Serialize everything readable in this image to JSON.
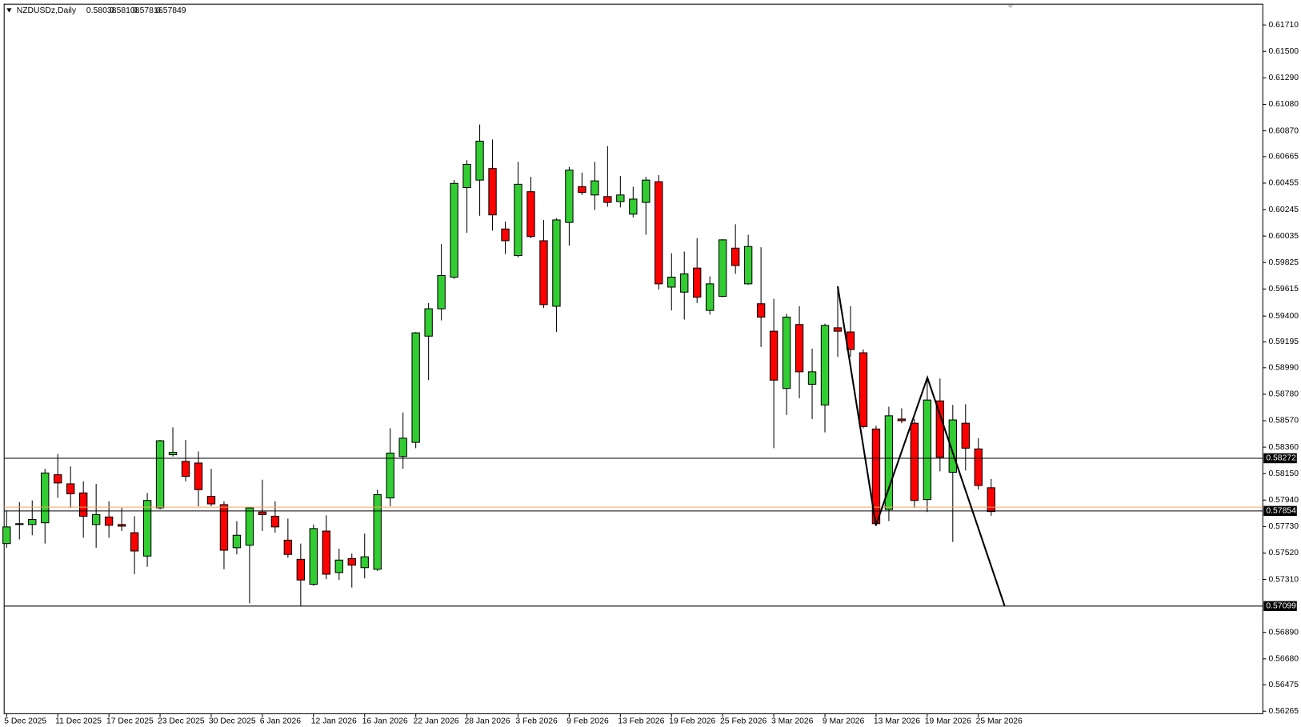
{
  "chart_data": {
    "type": "candlestick",
    "title": "NZDUSDz,Daily",
    "categories": [
      "5 Dec 2025",
      null,
      null,
      null,
      "11 Dec 2025",
      null,
      null,
      null,
      "17 Dec 2025",
      null,
      null,
      null,
      "23 Dec 2025",
      null,
      null,
      null,
      "30 Dec 2025",
      null,
      null,
      null,
      "6 Jan 2026",
      null,
      null,
      null,
      "12 Jan 2026",
      null,
      null,
      null,
      "16 Jan 2026",
      null,
      null,
      null,
      "22 Jan 2026",
      null,
      null,
      null,
      "28 Jan 2026",
      null,
      null,
      null,
      "3 Feb 2026",
      null,
      null,
      null,
      "9 Feb 2026",
      null,
      null,
      null,
      "13 Feb 2026",
      null,
      null,
      null,
      "19 Feb 2026",
      null,
      null,
      null,
      "25 Feb 2026",
      null,
      null,
      null,
      "3 Mar 2026",
      null,
      null,
      null,
      "9 Mar 2026",
      null,
      null,
      null,
      "13 Mar 2026",
      null,
      null,
      null,
      "19 Mar 2026",
      null,
      null,
      null,
      "25 Mar 2026",
      null
    ],
    "open": [
      0.57595,
      0.57746,
      0.57746,
      0.5776,
      0.58141,
      0.58069,
      0.57997,
      0.57746,
      0.57806,
      0.57746,
      0.57681,
      0.57496,
      0.57878,
      0.583,
      0.58247,
      0.58234,
      0.5797,
      0.57904,
      0.57562,
      0.57582,
      0.57845,
      0.57812,
      0.57622,
      0.5747,
      0.57272,
      0.57694,
      0.57365,
      0.57476,
      0.57404,
      0.57391,
      0.57957,
      0.58286,
      0.58398,
      0.59241,
      0.59458,
      0.59709,
      0.6042,
      0.60479,
      0.60571,
      0.60091,
      0.5988,
      0.60387,
      0.59998,
      0.59478,
      0.60143,
      0.60427,
      0.60361,
      0.60348,
      0.60308,
      0.60209,
      0.60302,
      0.60466,
      0.5963,
      0.5959,
      0.59781,
      0.59445,
      0.59557,
      0.59939,
      0.59656,
      0.59498,
      0.5928,
      0.58826,
      0.59333,
      0.58859,
      0.58695,
      0.59307,
      0.59274,
      0.59109,
      0.58504,
      0.57865,
      0.58583,
      0.5855,
      0.57944,
      0.58727,
      0.58161,
      0.5855,
      0.58346,
      0.58038
    ],
    "high": [
      0.57858,
      0.57924,
      0.57937,
      0.58188,
      0.58306,
      0.58207,
      0.58089,
      0.58069,
      0.5793,
      0.57878,
      0.57812,
      0.57997,
      0.58418,
      0.58517,
      0.58418,
      0.58326,
      0.58188,
      0.5793,
      0.57773,
      0.57884,
      0.58102,
      0.5793,
      0.57793,
      0.57595,
      0.57746,
      0.57819,
      0.57555,
      0.57516,
      0.57674,
      0.58023,
      0.5851,
      0.58635,
      0.59274,
      0.59504,
      0.59972,
      0.60479,
      0.60637,
      0.6092,
      0.60801,
      0.6015,
      0.60624,
      0.60505,
      0.60163,
      0.60176,
      0.60584,
      0.60538,
      0.60624,
      0.60749,
      0.60512,
      0.60427,
      0.60505,
      0.60518,
      0.59899,
      0.59912,
      0.60018,
      0.59715,
      0.60011,
      0.60129,
      0.60045,
      0.59946,
      0.59537,
      0.59419,
      0.59478,
      0.59142,
      0.5934,
      0.59637,
      0.59478,
      0.59135,
      0.5853,
      0.58681,
      0.58668,
      0.58583,
      0.58912,
      0.58905,
      0.58695,
      0.58701,
      0.58431,
      0.58108
    ],
    "low": [
      0.57562,
      0.57628,
      0.57661,
      0.57595,
      0.57957,
      0.57878,
      0.57641,
      0.57562,
      0.57641,
      0.57694,
      0.57352,
      0.57411,
      0.57865,
      0.58286,
      0.58089,
      0.57891,
      0.57891,
      0.57391,
      0.57509,
      0.57121,
      0.57694,
      0.57681,
      0.57483,
      0.57101,
      0.57259,
      0.57312,
      0.57306,
      0.57246,
      0.57319,
      0.57378,
      0.57891,
      0.58188,
      0.58352,
      0.58892,
      0.59366,
      0.59695,
      0.6006,
      0.60196,
      0.60078,
      0.59893,
      0.59867,
      0.60018,
      0.59465,
      0.59274,
      0.59959,
      0.60361,
      0.60242,
      0.60268,
      0.60262,
      0.60183,
      0.60045,
      0.5961,
      0.59445,
      0.59373,
      0.59504,
      0.59412,
      0.5955,
      0.59735,
      0.59649,
      0.59155,
      0.58352,
      0.58616,
      0.58748,
      0.58583,
      0.58477,
      0.59076,
      0.59076,
      0.5851,
      0.57733,
      0.57773,
      0.5855,
      0.57878,
      0.57845,
      0.58168,
      0.57608,
      0.58175,
      0.58023,
      0.57816
    ],
    "close": [
      0.57727,
      0.57753,
      0.57786,
      0.58155,
      0.58076,
      0.5799,
      0.57812,
      0.57825,
      0.5774,
      0.57733,
      0.57536,
      0.57937,
      0.58411,
      0.58319,
      0.58128,
      0.58023,
      0.5791,
      0.57542,
      0.57661,
      0.57878,
      0.57825,
      0.57727,
      0.57509,
      0.57306,
      0.57714,
      0.57352,
      0.57464,
      0.57424,
      0.5749,
      0.57983,
      0.58313,
      0.58431,
      0.59267,
      0.59458,
      0.59722,
      0.60453,
      0.60604,
      0.60788,
      0.60203,
      0.59998,
      0.60446,
      0.60031,
      0.59491,
      0.60163,
      0.60558,
      0.60381,
      0.60473,
      0.60302,
      0.60361,
      0.60328,
      0.60479,
      0.59656,
      0.59709,
      0.59735,
      0.5955,
      0.59656,
      0.60005,
      0.59801,
      0.59952,
      0.59392,
      0.58892,
      0.59392,
      0.58958,
      0.58958,
      0.59326,
      0.5928,
      0.59135,
      0.58523,
      0.57753,
      0.58609,
      0.5857,
      0.57937,
      0.58734,
      0.5828,
      0.58576,
      0.58352,
      0.58056,
      0.57849
    ],
    "up_color": "#32cd32",
    "down_color": "#ff0000",
    "levels": [
      0.58272,
      0.57854,
      0.57099
    ],
    "ask_line": {
      "value": 0.57884,
      "color": "#f4a460"
    },
    "ylim": [
      0.56245,
      0.61875
    ],
    "yticks": [
      {
        "value": 0.6171,
        "label": "0.61710"
      },
      {
        "value": 0.615,
        "label": "0.61500"
      },
      {
        "value": 0.6129,
        "label": "0.61290"
      },
      {
        "value": 0.6108,
        "label": "0.61080"
      },
      {
        "value": 0.6087,
        "label": "0.60870"
      },
      0.60665,
      0.60455,
      0.60245,
      0.60035,
      0.59825,
      0.59615,
      {
        "value": 0.594,
        "label": "0.59400"
      },
      0.59195,
      {
        "value": 0.5899,
        "label": "0.58990"
      },
      {
        "value": 0.5878,
        "label": "0.58780"
      },
      {
        "value": 0.5857,
        "label": "0.58570"
      },
      {
        "value": 0.5836,
        "label": "0.58360"
      },
      {
        "value": 0.5815,
        "label": "0.58150"
      },
      {
        "value": 0.5794,
        "label": "0.57940"
      },
      {
        "value": 0.5773,
        "label": "0.57730"
      },
      {
        "value": 0.5752,
        "label": "0.57520"
      },
      {
        "value": 0.5731,
        "label": "0.57310"
      },
      {
        "value": 0.5689,
        "label": "0.56890"
      },
      {
        "value": 0.5668,
        "label": "0.56680"
      },
      0.56475,
      0.56265
    ],
    "grid": false
  }
}
